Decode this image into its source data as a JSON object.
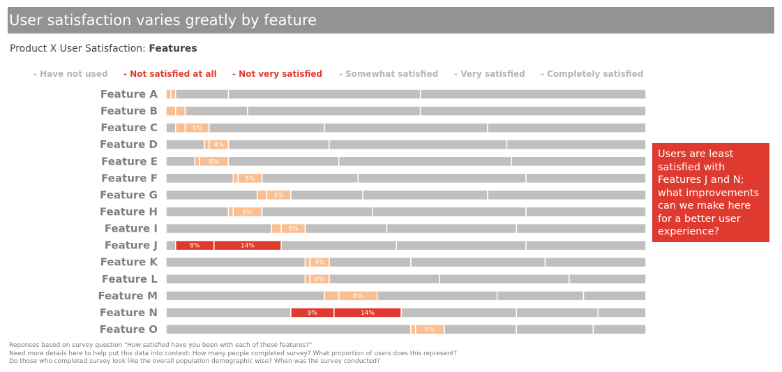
{
  "banner_title": "User satisfaction varies greatly by feature",
  "subtitle": {
    "prefix": "Product X User Satisfaction: ",
    "bold": "Features"
  },
  "callout": "Users are least satisfied with Features J and N; what improvements can we make here for a better user experience?",
  "footnote": [
    "Reponses based on survey question \"How satisfied have you been with each of these features?\"",
    "Need more details here to help put this data into context: How many people completed survey? What proportion of users does this represent?",
    "Do those who completed survey look like the overall population demographic wise? When was the survey conducted?"
  ],
  "colors": {
    "gray": "#bfbfbf",
    "orange": "#f9bf93",
    "red": "#df3a2f",
    "legend_gray": "#b5b5b5",
    "label_gray": "#7f7f7f"
  },
  "chart_data": {
    "type": "bar",
    "orientation": "horizontal",
    "stacked": true,
    "percent": true,
    "legend_position": "top",
    "categories": [
      "Feature A",
      "Feature B",
      "Feature C",
      "Feature D",
      "Feature E",
      "Feature F",
      "Feature G",
      "Feature H",
      "Feature I",
      "Feature J",
      "Feature K",
      "Feature L",
      "Feature M",
      "Feature N",
      "Feature O"
    ],
    "series": [
      {
        "name": "- Have not used",
        "color": "#bfbfbf",
        "values": [
          0,
          0,
          2,
          8,
          6,
          14,
          19,
          13,
          22,
          2,
          29,
          29,
          33,
          26,
          51
        ]
      },
      {
        "name": "- Not satisfied at all",
        "color": "#f9bf93",
        "values": [
          1,
          2,
          2,
          1,
          1,
          1,
          2,
          1,
          2,
          8,
          1,
          1,
          3,
          9,
          1
        ]
      },
      {
        "name": "- Not very satisfied",
        "color": "#f9bf93",
        "values": [
          1,
          2,
          5,
          4,
          6,
          5,
          5,
          6,
          5,
          14,
          4,
          4,
          8,
          14,
          6
        ]
      },
      {
        "name": "- Somewhat satisfied",
        "color": "#bfbfbf",
        "values": [
          11,
          13,
          24,
          21,
          23,
          20,
          15,
          23,
          17,
          24,
          17,
          23,
          25,
          24,
          15
        ]
      },
      {
        "name": "- Very satisfied",
        "color": "#bfbfbf",
        "values": [
          40,
          36,
          34,
          37,
          36,
          35,
          26,
          32,
          27,
          27,
          28,
          27,
          18,
          17,
          16
        ]
      },
      {
        "name": "- Completely satisfied",
        "color": "#bfbfbf",
        "values": [
          47,
          47,
          33,
          29,
          28,
          25,
          33,
          25,
          27,
          25,
          21,
          16,
          13,
          10,
          11
        ]
      }
    ],
    "red_rows": [
      "Feature J",
      "Feature N"
    ],
    "legend_colors": [
      "#b5b5b5",
      "#df3a2f",
      "#df3a2f",
      "#b5b5b5",
      "#b5b5b5",
      "#b5b5b5"
    ],
    "data_labels": [
      {
        "row": 2,
        "series": 2,
        "text": "5%"
      },
      {
        "row": 3,
        "series": 2,
        "text": "4%"
      },
      {
        "row": 4,
        "series": 2,
        "text": "6%"
      },
      {
        "row": 5,
        "series": 2,
        "text": "5%"
      },
      {
        "row": 6,
        "series": 2,
        "text": "5%"
      },
      {
        "row": 7,
        "series": 2,
        "text": "6%"
      },
      {
        "row": 8,
        "series": 2,
        "text": "5%"
      },
      {
        "row": 9,
        "series": 1,
        "text": "8%"
      },
      {
        "row": 9,
        "series": 2,
        "text": "14%"
      },
      {
        "row": 10,
        "series": 2,
        "text": "4%"
      },
      {
        "row": 11,
        "series": 2,
        "text": "4%"
      },
      {
        "row": 12,
        "series": 2,
        "text": "8%"
      },
      {
        "row": 13,
        "series": 1,
        "text": "9%"
      },
      {
        "row": 13,
        "series": 2,
        "text": "14%"
      },
      {
        "row": 14,
        "series": 2,
        "text": "6%"
      }
    ],
    "xlim": [
      0,
      100
    ]
  }
}
